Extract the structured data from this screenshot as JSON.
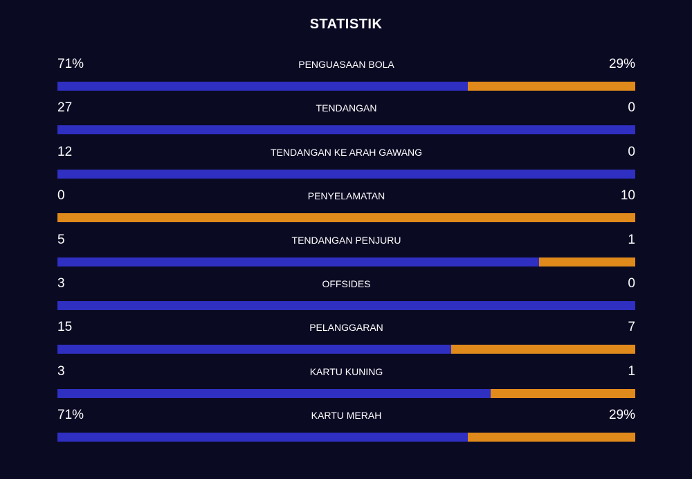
{
  "title": "STATISTIK",
  "colors": {
    "background": "#0a0a23",
    "home": "#2f2fc2",
    "away": "#e08a1b",
    "text": "#ffffff"
  },
  "stats": [
    {
      "label": "PENGUASAAN BOLA",
      "left": "71%",
      "right": "29%",
      "home_share": 0.71
    },
    {
      "label": "TENDANGAN",
      "left": "27",
      "right": "0",
      "home_share": 1.0
    },
    {
      "label": "TENDANGAN KE ARAH GAWANG",
      "left": "12",
      "right": "0",
      "home_share": 1.0
    },
    {
      "label": "PENYELAMATAN",
      "left": "0",
      "right": "10",
      "home_share": 0.0
    },
    {
      "label": "TENDANGAN PENJURU",
      "left": "5",
      "right": "1",
      "home_share": 0.8333
    },
    {
      "label": "OFFSIDES",
      "left": "3",
      "right": "0",
      "home_share": 1.0
    },
    {
      "label": "PELANGGARAN",
      "left": "15",
      "right": "7",
      "home_share": 0.6818
    },
    {
      "label": "KARTU KUNING",
      "left": "3",
      "right": "1",
      "home_share": 0.75
    },
    {
      "label": "KARTU MERAH",
      "left": "71%",
      "right": "29%",
      "home_share": 0.71
    }
  ]
}
